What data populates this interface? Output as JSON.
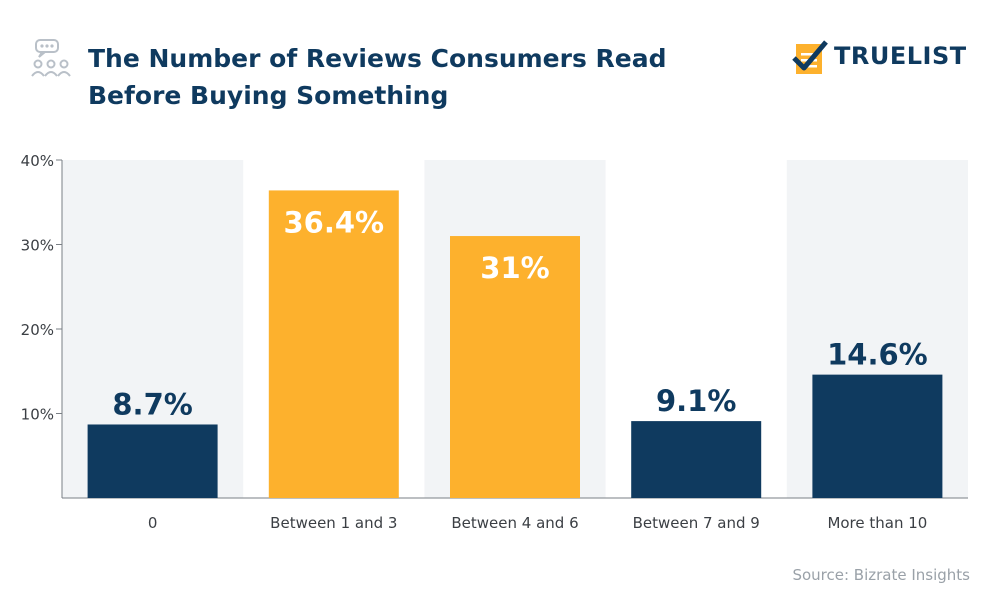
{
  "header": {
    "title_line1": "The Number of Reviews Consumers Read",
    "title_line2": "Before Buying Something",
    "logo_text": "TRUELIST",
    "icon": "people-chat-icon",
    "logo_icon": "checklist-icon"
  },
  "source": "Source: Bizrate Insights",
  "colors": {
    "navy": "#0f3a5f",
    "orange": "#fdb12d",
    "band": "#f2f4f6",
    "axis": "#7a7f85",
    "label": "#3b3f44"
  },
  "chart_data": {
    "type": "bar",
    "categories": [
      "0",
      "Between 1 and 3",
      "Between 4 and 6",
      "Between 7 and 9",
      "More than 10"
    ],
    "values": [
      8.7,
      36.4,
      31,
      9.1,
      14.6
    ],
    "value_labels": [
      "8.7%",
      "36.4%",
      "31%",
      "9.1%",
      "14.6%"
    ],
    "bar_colors": [
      "#0f3a5f",
      "#fdb12d",
      "#fdb12d",
      "#0f3a5f",
      "#0f3a5f"
    ],
    "value_label_inside": [
      false,
      true,
      true,
      false,
      false
    ],
    "ylim": [
      0,
      40
    ],
    "yticks": [
      10,
      20,
      30,
      40
    ],
    "ytick_labels": [
      "10%",
      "20%",
      "30%",
      "40%"
    ],
    "xlabel": "",
    "ylabel": "",
    "grid": false,
    "alternating_bands": true
  }
}
